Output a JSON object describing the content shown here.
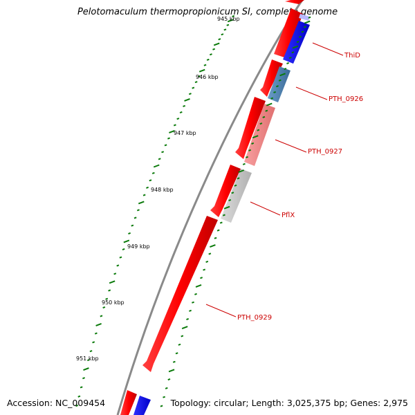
{
  "title": "Pelotomaculum thermopropionicum SI, complete genome",
  "footer": {
    "accession": "Accession: NC_009454",
    "summary": "Topology: circular; Length: 3,025,375 bp; Genes: 2,975"
  },
  "colors": {
    "backbone": "#8a8a8a",
    "forward_strand": "#ff0000",
    "reverse_strand": "#0000ff",
    "tick": "#0a7a0a",
    "gene_label": "#cc0000",
    "pthr_0926": "#4a7fb0",
    "pthr_0927": "#f08a8a",
    "pflx": "#c8c8c8"
  },
  "ruler": {
    "major_labels": [
      "945 kbp",
      "946 kbp",
      "947 kbp",
      "948 kbp",
      "949 kbp",
      "950 kbp",
      "951 kbp"
    ]
  },
  "genes": [
    {
      "name": "ThiD",
      "track": "inner",
      "color_key": "reverse_strand"
    },
    {
      "name": "PTH_0926",
      "track": "inner",
      "color_key": "pthr_0926"
    },
    {
      "name": "PTH_0927",
      "track": "inner",
      "color_key": "pthr_0927"
    },
    {
      "name": "PflX",
      "track": "inner",
      "color_key": "pflx"
    },
    {
      "name": "PTH_0929",
      "track": "outer",
      "color_key": "forward_strand"
    }
  ]
}
